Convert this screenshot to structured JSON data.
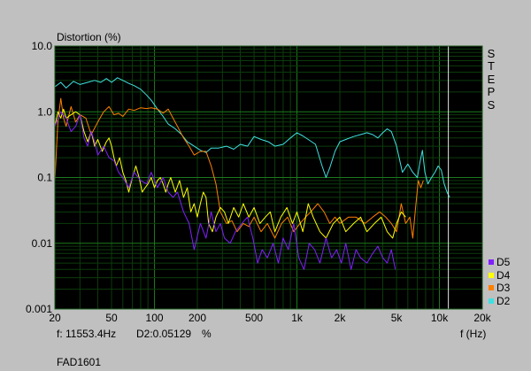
{
  "chart_data": {
    "type": "line",
    "title": "Distortion (%)",
    "xlabel": "f (Hz)",
    "ylabel": "Distortion (%)",
    "x_scale": "log",
    "y_scale": "log",
    "xlim": [
      20,
      20000
    ],
    "ylim": [
      0.001,
      10
    ],
    "x_ticks": [
      20,
      50,
      100,
      200,
      500,
      1000,
      2000,
      5000,
      10000,
      20000
    ],
    "x_tick_labels": [
      "20",
      "50",
      "100",
      "200",
      "500",
      "1k",
      "2k",
      "5k",
      "10k",
      "20k"
    ],
    "y_ticks": [
      0.001,
      0.01,
      0.1,
      1,
      10
    ],
    "y_tick_labels": [
      "0.001",
      "0.01",
      "0.1",
      "1.0",
      "10.0"
    ],
    "cursor_x": 11553.4,
    "grid": true,
    "legend_position": "bottom-right",
    "series": [
      {
        "name": "D2",
        "color": "#40e0e0",
        "points": [
          [
            20,
            2.4
          ],
          [
            22,
            2.8
          ],
          [
            24,
            2.3
          ],
          [
            27,
            2.9
          ],
          [
            30,
            2.6
          ],
          [
            34,
            2.8
          ],
          [
            38,
            3.0
          ],
          [
            42,
            2.8
          ],
          [
            46,
            3.2
          ],
          [
            50,
            2.8
          ],
          [
            55,
            3.3
          ],
          [
            60,
            3.0
          ],
          [
            66,
            2.7
          ],
          [
            72,
            2.5
          ],
          [
            80,
            2.2
          ],
          [
            88,
            1.8
          ],
          [
            95,
            1.5
          ],
          [
            105,
            1.1
          ],
          [
            115,
            0.85
          ],
          [
            125,
            0.65
          ],
          [
            140,
            0.55
          ],
          [
            155,
            0.45
          ],
          [
            170,
            0.35
          ],
          [
            190,
            0.3
          ],
          [
            210,
            0.26
          ],
          [
            230,
            0.24
          ],
          [
            250,
            0.28
          ],
          [
            280,
            0.28
          ],
          [
            320,
            0.3
          ],
          [
            360,
            0.27
          ],
          [
            400,
            0.32
          ],
          [
            450,
            0.3
          ],
          [
            500,
            0.42
          ],
          [
            560,
            0.38
          ],
          [
            630,
            0.35
          ],
          [
            700,
            0.3
          ],
          [
            800,
            0.32
          ],
          [
            900,
            0.4
          ],
          [
            1000,
            0.48
          ],
          [
            1100,
            0.43
          ],
          [
            1200,
            0.38
          ],
          [
            1350,
            0.32
          ],
          [
            1500,
            0.15
          ],
          [
            1600,
            0.1
          ],
          [
            1700,
            0.14
          ],
          [
            1850,
            0.25
          ],
          [
            2000,
            0.35
          ],
          [
            2200,
            0.38
          ],
          [
            2500,
            0.42
          ],
          [
            2800,
            0.45
          ],
          [
            3100,
            0.48
          ],
          [
            3400,
            0.45
          ],
          [
            3700,
            0.4
          ],
          [
            4000,
            0.48
          ],
          [
            4300,
            0.55
          ],
          [
            4600,
            0.5
          ],
          [
            5000,
            0.3
          ],
          [
            5500,
            0.12
          ],
          [
            6000,
            0.16
          ],
          [
            6500,
            0.12
          ],
          [
            7000,
            0.1
          ],
          [
            7300,
            0.17
          ],
          [
            7600,
            0.26
          ],
          [
            7900,
            0.12
          ],
          [
            8300,
            0.08
          ],
          [
            8800,
            0.1
          ],
          [
            9300,
            0.12
          ],
          [
            9800,
            0.15
          ],
          [
            10300,
            0.13
          ],
          [
            10800,
            0.08
          ],
          [
            11300,
            0.06
          ],
          [
            11800,
            0.05
          ]
        ]
      },
      {
        "name": "D3",
        "color": "#ff8000",
        "points": [
          [
            20,
            0.09
          ],
          [
            21,
            0.7
          ],
          [
            22,
            1.6
          ],
          [
            23,
            0.8
          ],
          [
            24,
            0.6
          ],
          [
            26,
            1.2
          ],
          [
            28,
            0.7
          ],
          [
            30,
            0.9
          ],
          [
            33,
            0.8
          ],
          [
            36,
            0.45
          ],
          [
            40,
            0.7
          ],
          [
            44,
            1.0
          ],
          [
            48,
            1.2
          ],
          [
            52,
            0.9
          ],
          [
            56,
            0.95
          ],
          [
            60,
            0.85
          ],
          [
            66,
            1.1
          ],
          [
            72,
            1.05
          ],
          [
            80,
            1.15
          ],
          [
            88,
            1.12
          ],
          [
            95,
            1.15
          ],
          [
            105,
            1.1
          ],
          [
            115,
            0.95
          ],
          [
            125,
            1.1
          ],
          [
            135,
            0.8
          ],
          [
            145,
            0.6
          ],
          [
            160,
            0.4
          ],
          [
            175,
            0.3
          ],
          [
            190,
            0.22
          ],
          [
            210,
            0.25
          ],
          [
            230,
            0.25
          ],
          [
            250,
            0.15
          ],
          [
            270,
            0.08
          ],
          [
            290,
            0.03
          ],
          [
            320,
            0.02
          ],
          [
            350,
            0.022
          ],
          [
            380,
            0.015
          ],
          [
            420,
            0.02
          ],
          [
            460,
            0.018
          ],
          [
            500,
            0.025
          ],
          [
            560,
            0.015
          ],
          [
            620,
            0.02
          ],
          [
            700,
            0.012
          ],
          [
            780,
            0.02
          ],
          [
            860,
            0.025
          ],
          [
            950,
            0.015
          ],
          [
            1050,
            0.02
          ],
          [
            1150,
            0.025
          ],
          [
            1250,
            0.03
          ],
          [
            1400,
            0.04
          ],
          [
            1550,
            0.03
          ],
          [
            1700,
            0.02
          ],
          [
            1850,
            0.025
          ],
          [
            2000,
            0.02
          ],
          [
            2300,
            0.025
          ],
          [
            2600,
            0.025
          ],
          [
            3000,
            0.02
          ],
          [
            3400,
            0.025
          ],
          [
            3800,
            0.03
          ],
          [
            4200,
            0.025
          ],
          [
            4600,
            0.02
          ],
          [
            5000,
            0.015
          ],
          [
            5400,
            0.04
          ],
          [
            5800,
            0.02
          ],
          [
            6200,
            0.025
          ],
          [
            6500,
            0.012
          ],
          [
            6800,
            0.035
          ],
          [
            7100,
            0.09
          ],
          [
            7400,
            0.07
          ],
          [
            7700,
            0.09
          ]
        ]
      },
      {
        "name": "D4",
        "color": "#ffff00",
        "points": [
          [
            20,
            0.6
          ],
          [
            21,
            1.0
          ],
          [
            22,
            0.8
          ],
          [
            23,
            1.1
          ],
          [
            24,
            0.8
          ],
          [
            26,
            0.9
          ],
          [
            28,
            1.0
          ],
          [
            30,
            0.9
          ],
          [
            32,
            0.5
          ],
          [
            34,
            0.35
          ],
          [
            36,
            0.5
          ],
          [
            38,
            0.3
          ],
          [
            40,
            0.38
          ],
          [
            43,
            0.25
          ],
          [
            46,
            0.35
          ],
          [
            48,
            0.4
          ],
          [
            50,
            0.3
          ],
          [
            52,
            0.2
          ],
          [
            54,
            0.15
          ],
          [
            57,
            0.2
          ],
          [
            60,
            0.12
          ],
          [
            63,
            0.09
          ],
          [
            66,
            0.06
          ],
          [
            70,
            0.1
          ],
          [
            74,
            0.15
          ],
          [
            78,
            0.1
          ],
          [
            82,
            0.06
          ],
          [
            86,
            0.07
          ],
          [
            90,
            0.08
          ],
          [
            95,
            0.1
          ],
          [
            100,
            0.07
          ],
          [
            105,
            0.09
          ],
          [
            110,
            0.1
          ],
          [
            115,
            0.08
          ],
          [
            120,
            0.06
          ],
          [
            125,
            0.08
          ],
          [
            130,
            0.1
          ],
          [
            140,
            0.06
          ],
          [
            150,
            0.09
          ],
          [
            160,
            0.05
          ],
          [
            170,
            0.07
          ],
          [
            180,
            0.03
          ],
          [
            190,
            0.04
          ],
          [
            200,
            0.025
          ],
          [
            210,
            0.04
          ],
          [
            220,
            0.06
          ],
          [
            230,
            0.05
          ],
          [
            240,
            0.02
          ],
          [
            255,
            0.015
          ],
          [
            270,
            0.025
          ],
          [
            290,
            0.035
          ],
          [
            310,
            0.03
          ],
          [
            330,
            0.02
          ],
          [
            360,
            0.035
          ],
          [
            390,
            0.025
          ],
          [
            420,
            0.04
          ],
          [
            460,
            0.025
          ],
          [
            500,
            0.035
          ],
          [
            550,
            0.02
          ],
          [
            600,
            0.025
          ],
          [
            650,
            0.03
          ],
          [
            700,
            0.015
          ],
          [
            770,
            0.025
          ],
          [
            850,
            0.035
          ],
          [
            930,
            0.02
          ],
          [
            1000,
            0.03
          ],
          [
            1100,
            0.015
          ],
          [
            1200,
            0.04
          ],
          [
            1300,
            0.025
          ],
          [
            1450,
            0.015
          ],
          [
            1600,
            0.012
          ],
          [
            1800,
            0.02
          ],
          [
            2000,
            0.025
          ],
          [
            2200,
            0.015
          ],
          [
            2500,
            0.02
          ],
          [
            2800,
            0.025
          ],
          [
            3100,
            0.015
          ],
          [
            3500,
            0.02
          ],
          [
            3900,
            0.025
          ],
          [
            4300,
            0.015
          ],
          [
            4700,
            0.012
          ],
          [
            5000,
            0.02
          ],
          [
            5400,
            0.03
          ],
          [
            5800,
            0.025
          ]
        ]
      },
      {
        "name": "D5",
        "color": "#8020ff",
        "points": [
          [
            20,
            0.6
          ],
          [
            22,
            1.0
          ],
          [
            24,
            0.8
          ],
          [
            26,
            0.5
          ],
          [
            28,
            0.6
          ],
          [
            30,
            0.9
          ],
          [
            32,
            0.4
          ],
          [
            34,
            0.3
          ],
          [
            36,
            0.5
          ],
          [
            38,
            0.35
          ],
          [
            40,
            0.22
          ],
          [
            44,
            0.3
          ],
          [
            48,
            0.2
          ],
          [
            52,
            0.18
          ],
          [
            56,
            0.12
          ],
          [
            60,
            0.1
          ],
          [
            66,
            0.07
          ],
          [
            72,
            0.12
          ],
          [
            80,
            0.09
          ],
          [
            88,
            0.08
          ],
          [
            95,
            0.12
          ],
          [
            105,
            0.07
          ],
          [
            115,
            0.1
          ],
          [
            125,
            0.06
          ],
          [
            135,
            0.05
          ],
          [
            145,
            0.06
          ],
          [
            160,
            0.03
          ],
          [
            175,
            0.02
          ],
          [
            190,
            0.008
          ],
          [
            210,
            0.02
          ],
          [
            230,
            0.012
          ],
          [
            250,
            0.03
          ],
          [
            270,
            0.015
          ],
          [
            290,
            0.02
          ],
          [
            310,
            0.012
          ],
          [
            340,
            0.01
          ],
          [
            370,
            0.015
          ],
          [
            410,
            0.02
          ],
          [
            450,
            0.025
          ],
          [
            490,
            0.012
          ],
          [
            530,
            0.005
          ],
          [
            570,
            0.008
          ],
          [
            620,
            0.006
          ],
          [
            680,
            0.01
          ],
          [
            740,
            0.005
          ],
          [
            800,
            0.012
          ],
          [
            870,
            0.008
          ],
          [
            950,
            0.02
          ],
          [
            1030,
            0.006
          ],
          [
            1120,
            0.004
          ],
          [
            1220,
            0.01
          ],
          [
            1330,
            0.008
          ],
          [
            1450,
            0.005
          ],
          [
            1600,
            0.012
          ],
          [
            1750,
            0.006
          ],
          [
            1900,
            0.008
          ],
          [
            2050,
            0.005
          ],
          [
            2200,
            0.01
          ],
          [
            2400,
            0.004
          ],
          [
            2600,
            0.008
          ],
          [
            2800,
            0.006
          ],
          [
            3100,
            0.005
          ],
          [
            3400,
            0.007
          ],
          [
            3700,
            0.009
          ],
          [
            4000,
            0.006
          ],
          [
            4300,
            0.005
          ],
          [
            4600,
            0.008
          ],
          [
            4900,
            0.004
          ]
        ]
      }
    ]
  },
  "sidebar": {
    "steps_label": "STEPS"
  },
  "readout": {
    "frequency": "f: 11553.4Hz",
    "value": "D2:0.05129",
    "unit": "%"
  },
  "footer": {
    "model": "FAD1601"
  }
}
